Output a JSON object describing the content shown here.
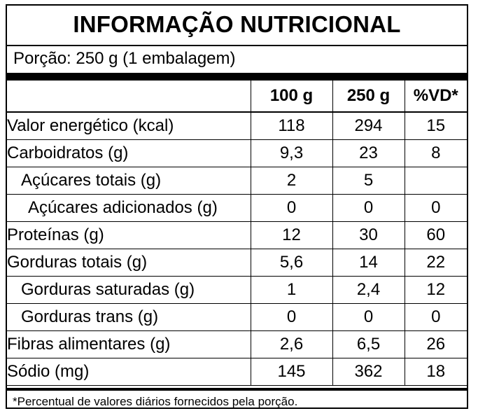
{
  "title": "INFORMAÇÃO NUTRICIONAL",
  "portion": "Porção: 250 g (1 embalagem)",
  "columns": {
    "blank": "",
    "per100": "100 g",
    "per250": "250 g",
    "vd": "%VD*"
  },
  "rows": [
    {
      "name": "Valor energético (kcal)",
      "v100": "118",
      "v250": "294",
      "vd": "15"
    },
    {
      "name": "Carboidratos (g)",
      "v100": "9,3",
      "v250": "23",
      "vd": "8"
    },
    {
      "name": "Açúcares totais (g)",
      "v100": "2",
      "v250": "5",
      "vd": ""
    },
    {
      "name": "Açúcares adicionados (g)",
      "v100": "0",
      "v250": "0",
      "vd": "0"
    },
    {
      "name": "Proteínas (g)",
      "v100": "12",
      "v250": "30",
      "vd": "60"
    },
    {
      "name": "Gorduras totais (g)",
      "v100": "5,6",
      "v250": "14",
      "vd": "22"
    },
    {
      "name": "Gorduras saturadas (g)",
      "v100": "1",
      "v250": "2,4",
      "vd": "12"
    },
    {
      "name": "Gorduras trans (g)",
      "v100": "0",
      "v250": "0",
      "vd": "0"
    },
    {
      "name": "Fibras alimentares (g)",
      "v100": "2,6",
      "v250": "6,5",
      "vd": "26"
    },
    {
      "name": "Sódio (mg)",
      "v100": "145",
      "v250": "362",
      "vd": "18"
    }
  ],
  "footnote": "*Percentual de valores diários fornecidos pela porção."
}
